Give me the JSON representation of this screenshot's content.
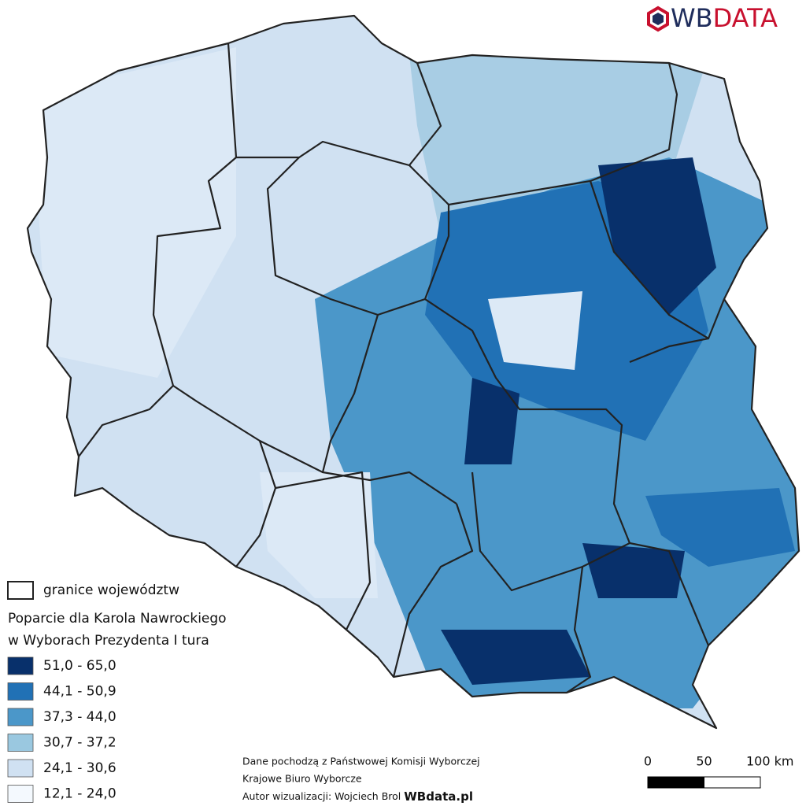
{
  "logo": {
    "prefix": "WB",
    "suffix": "DATA"
  },
  "legend": {
    "boundary_label": "granice województw",
    "title_lines": [
      "Poparcie dla Karola Nawrockiego",
      "w Wyborach Prezydenta I tura"
    ],
    "classes": [
      {
        "label": "51,0 - 65,0",
        "color": "#08306b"
      },
      {
        "label": "44,1 - 50,9",
        "color": "#2171b5"
      },
      {
        "label": "37,3 - 44,0",
        "color": "#4b97c9"
      },
      {
        "label": "30,7 - 37,2",
        "color": "#9ac8e0"
      },
      {
        "label": "24,1 - 30,6",
        "color": "#d0e1f2"
      },
      {
        "label": "12,1 - 24,0",
        "color": "#f4f9fe"
      }
    ]
  },
  "source": {
    "lines": [
      "Dane pochodzą z Państwowej Komisji Wyborczej",
      "Krajowe Biuro Wyborcze",
      "Autor wizualizacji: Wojciech Brol"
    ],
    "site": "WBdata.pl"
  },
  "scale_bar": {
    "ticks": [
      0,
      50,
      {
        "value": 100,
        "label": "100 km"
      }
    ]
  }
}
